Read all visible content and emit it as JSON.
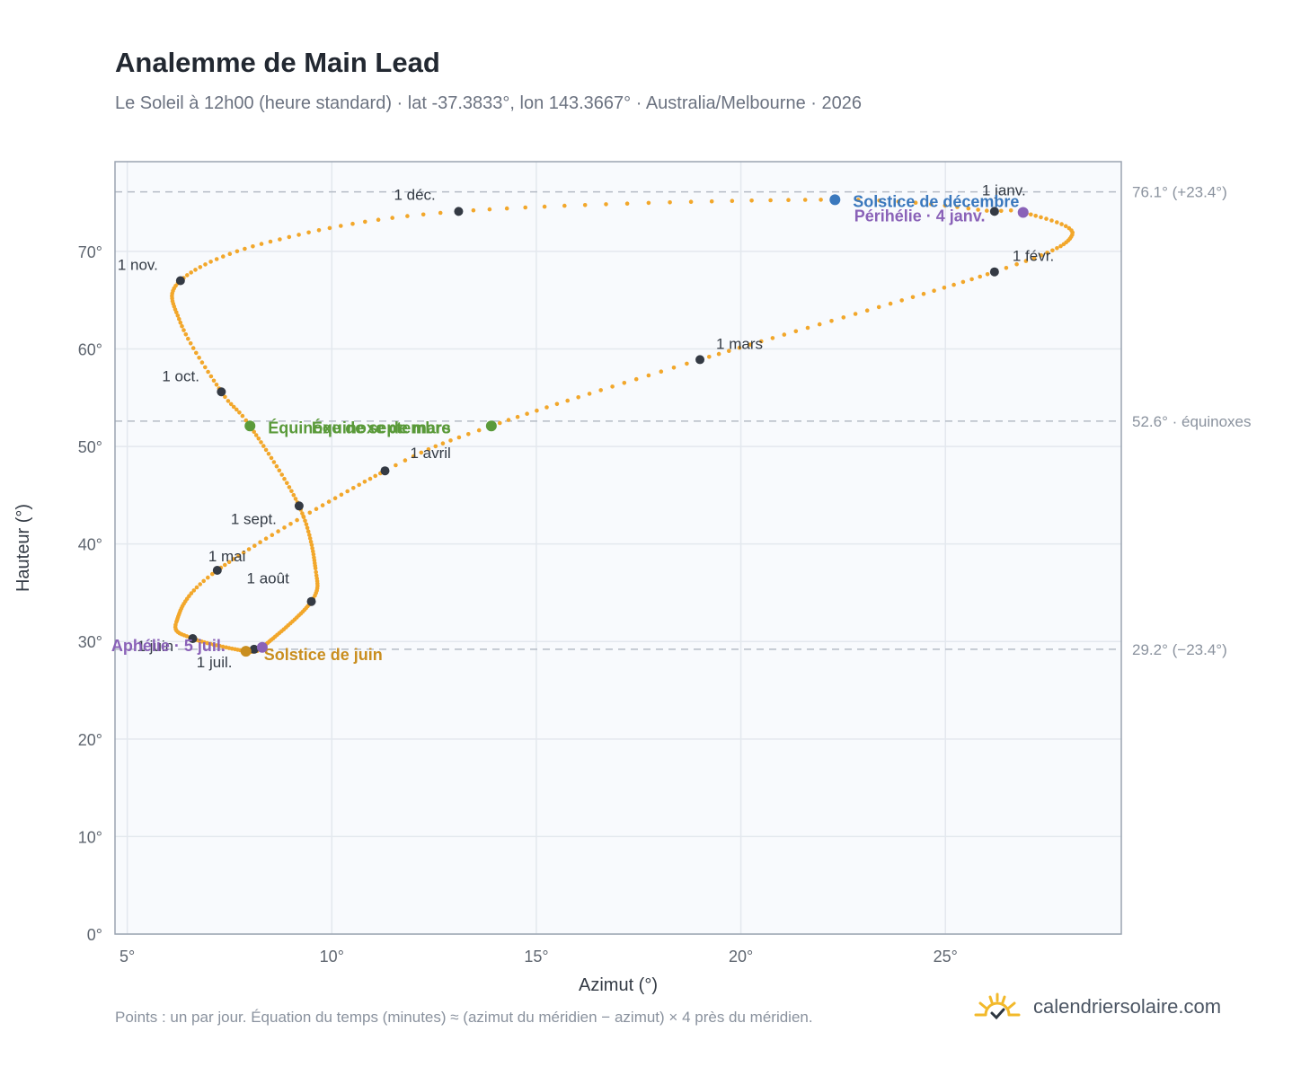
{
  "header": {
    "title": "Analemme de Main Lead",
    "subtitle": "Le Soleil à 12h00 (heure standard) · lat -37.3833°, lon 143.3667° · Australia/Melbourne · 2026"
  },
  "footer": {
    "note": "Points : un par jour. Équation du temps (minutes) ≈ (azimut du méridien − azimut) × 4 près du méridien.",
    "brand": "calendriersolaire.com",
    "brand_icon": "sun-icon"
  },
  "colors": {
    "path": "#f2a72b",
    "month_dot": "#343a44",
    "december_solstice": "#3a78bd",
    "june_solstice": "#c98e1f",
    "equinox": "#5a9a3a",
    "aphelion_perihelion": "#8a62b8",
    "plot_bg": "#f8fafd",
    "grid": "#e3e8ee",
    "ref_line": "#b5bcc6"
  },
  "chart_data": {
    "type": "scatter",
    "title": "Analemme de Main Lead",
    "xlabel": "Azimut (°)",
    "ylabel": "Hauteur (°)",
    "xlim": [
      4.7,
      29.3
    ],
    "ylim": [
      0,
      79.2
    ],
    "grid": true,
    "x_ticks": [
      {
        "value": 5,
        "label": "5°"
      },
      {
        "value": 10,
        "label": "10°"
      },
      {
        "value": 15,
        "label": "15°"
      },
      {
        "value": 20,
        "label": "20°"
      },
      {
        "value": 25,
        "label": "25°"
      }
    ],
    "y_ticks": [
      {
        "value": 0,
        "label": "0°"
      },
      {
        "value": 10,
        "label": "10°"
      },
      {
        "value": 20,
        "label": "20°"
      },
      {
        "value": 30,
        "label": "30°"
      },
      {
        "value": 40,
        "label": "40°"
      },
      {
        "value": 50,
        "label": "50°"
      },
      {
        "value": 60,
        "label": "60°"
      },
      {
        "value": 70,
        "label": "70°"
      }
    ],
    "reference_lines": [
      {
        "y": 76.1,
        "label": "76.1° (+23.4°)"
      },
      {
        "y": 52.6,
        "label": "52.6° · équinoxes"
      },
      {
        "y": 29.2,
        "label": "29.2° (−23.4°)"
      }
    ],
    "path_anchors": [
      {
        "doy": 1,
        "az": 26.2,
        "alt": 74.1
      },
      {
        "doy": 4,
        "az": 26.9,
        "alt": 74.0
      },
      {
        "doy": 17,
        "az": 28.1,
        "alt": 71.7
      },
      {
        "doy": 32,
        "az": 26.2,
        "alt": 67.9
      },
      {
        "doy": 60,
        "az": 19.0,
        "alt": 58.9
      },
      {
        "doy": 79,
        "az": 13.9,
        "alt": 52.1
      },
      {
        "doy": 91,
        "az": 11.3,
        "alt": 47.5
      },
      {
        "doy": 121,
        "az": 7.2,
        "alt": 37.3
      },
      {
        "doy": 141,
        "az": 6.2,
        "alt": 32.0
      },
      {
        "doy": 152,
        "az": 6.6,
        "alt": 30.3
      },
      {
        "doy": 172,
        "az": 7.9,
        "alt": 29.0
      },
      {
        "doy": 182,
        "az": 8.1,
        "alt": 29.2
      },
      {
        "doy": 186,
        "az": 8.3,
        "alt": 29.4
      },
      {
        "doy": 213,
        "az": 9.5,
        "alt": 34.1
      },
      {
        "doy": 225,
        "az": 9.6,
        "alt": 37.5
      },
      {
        "doy": 244,
        "az": 9.2,
        "alt": 43.9
      },
      {
        "doy": 265,
        "az": 8.0,
        "alt": 52.1
      },
      {
        "doy": 274,
        "az": 7.3,
        "alt": 55.6
      },
      {
        "doy": 290,
        "az": 6.3,
        "alt": 62.7
      },
      {
        "doy": 305,
        "az": 6.3,
        "alt": 67.0
      },
      {
        "doy": 320,
        "az": 8.5,
        "alt": 71.0
      },
      {
        "doy": 335,
        "az": 13.1,
        "alt": 74.1
      },
      {
        "doy": 355,
        "az": 22.3,
        "alt": 75.3
      },
      {
        "doy": 366,
        "az": 26.2,
        "alt": 74.1
      }
    ],
    "month_points": [
      {
        "label": "1 janv.",
        "az": 26.2,
        "alt": 74.1
      },
      {
        "label": "1 févr.",
        "az": 26.2,
        "alt": 67.9
      },
      {
        "label": "1 mars",
        "az": 19.0,
        "alt": 58.9
      },
      {
        "label": "1 avril",
        "az": 11.3,
        "alt": 47.5
      },
      {
        "label": "1 mai",
        "az": 7.2,
        "alt": 37.3
      },
      {
        "label": "1 juin",
        "az": 6.6,
        "alt": 30.3
      },
      {
        "label": "1 juil.",
        "az": 8.1,
        "alt": 29.2
      },
      {
        "label": "1 août",
        "az": 9.5,
        "alt": 34.1
      },
      {
        "label": "1 sept.",
        "az": 9.2,
        "alt": 43.9
      },
      {
        "label": "1 oct.",
        "az": 7.3,
        "alt": 55.6
      },
      {
        "label": "1 nov.",
        "az": 6.3,
        "alt": 67.0
      },
      {
        "label": "1 déc.",
        "az": 13.1,
        "alt": 74.1
      }
    ],
    "events": [
      {
        "label": "Solstice de décembre",
        "az": 22.3,
        "alt": 75.3,
        "color": "#3a78bd"
      },
      {
        "label": "Périhélie · 4 janv.",
        "az": 26.9,
        "alt": 74.0,
        "color": "#8a62b8"
      },
      {
        "label": "Équinoxe de mars",
        "az": 13.9,
        "alt": 52.1,
        "color": "#5a9a3a"
      },
      {
        "label": "Équinoxe de septembre",
        "az": 8.0,
        "alt": 52.1,
        "color": "#5a9a3a"
      },
      {
        "label": "Solstice de juin",
        "az": 7.9,
        "alt": 29.0,
        "color": "#c98e1f"
      },
      {
        "label": "Aphélie · 5 juil.",
        "az": 8.3,
        "alt": 29.4,
        "color": "#8a62b8"
      }
    ]
  }
}
